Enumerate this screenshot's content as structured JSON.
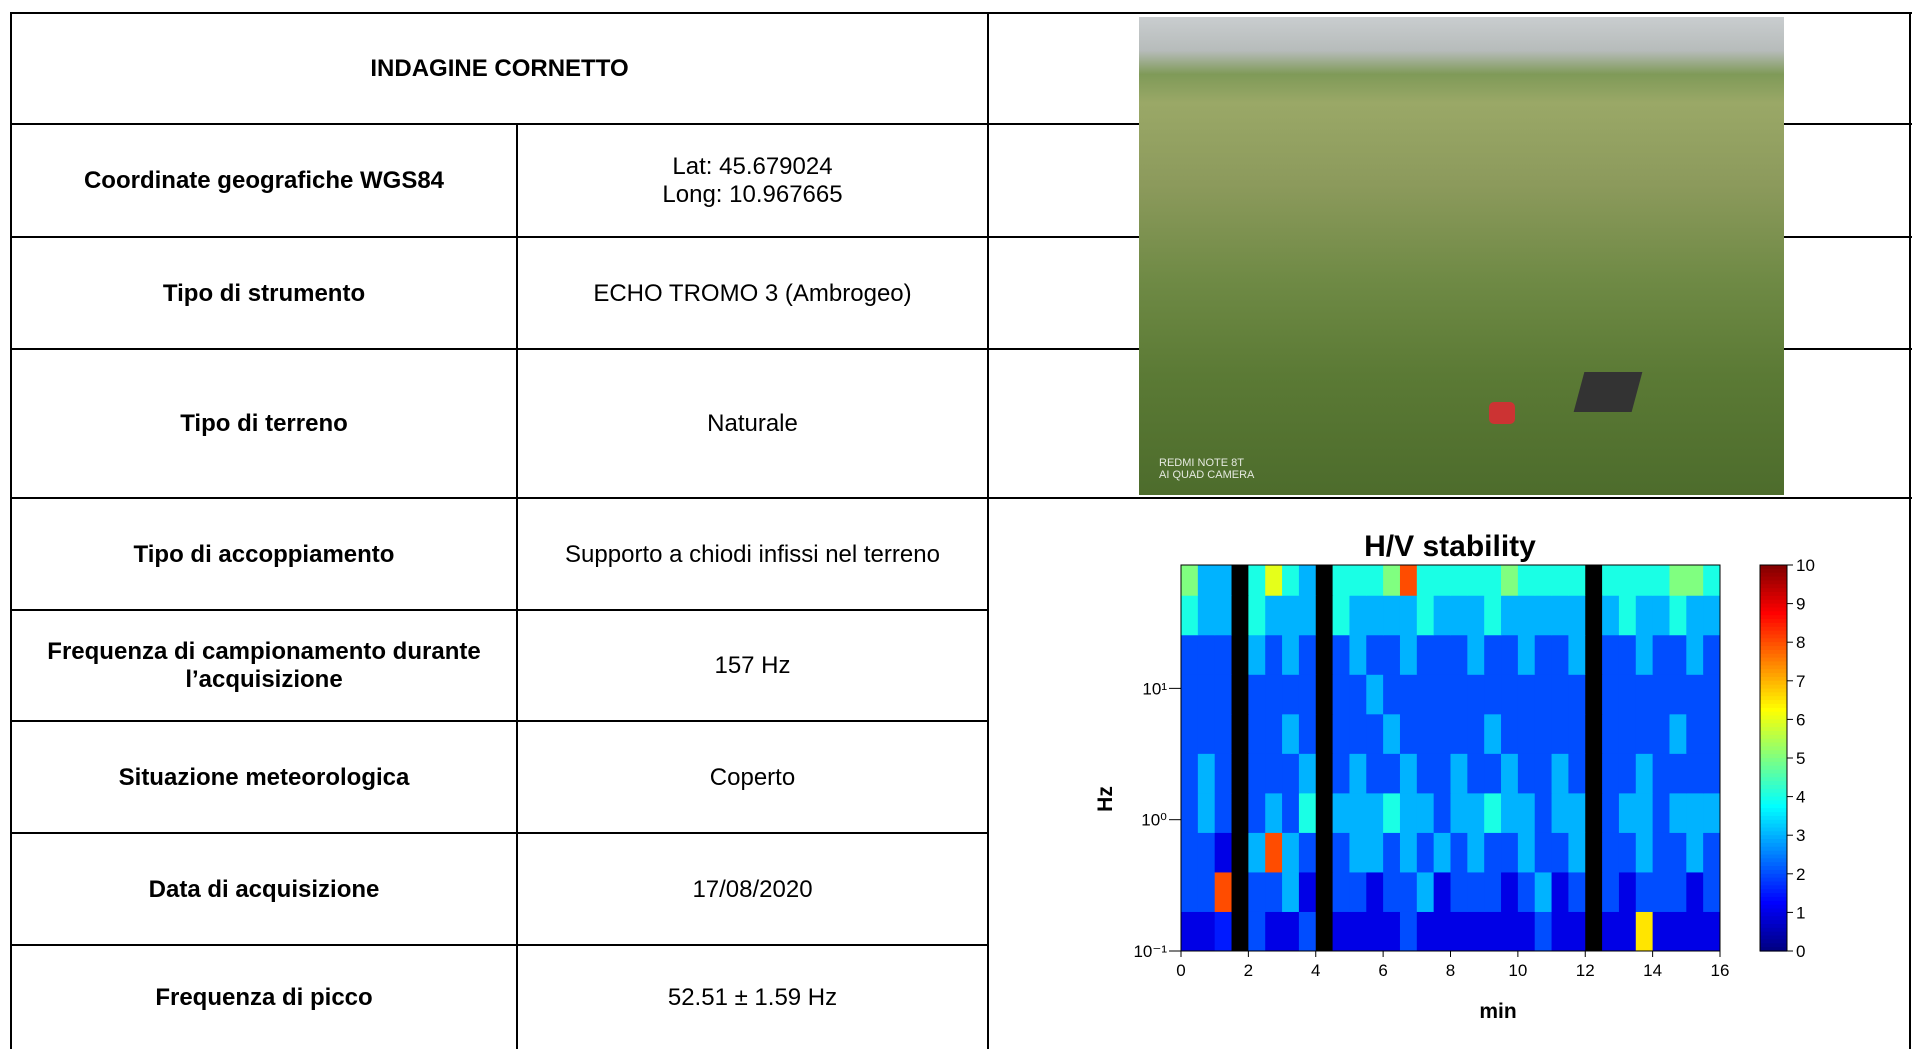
{
  "table": {
    "title": "INDAGINE CORNETTO",
    "rows": [
      {
        "label": "Coordinate geografiche WGS84",
        "value": [
          "Lat: 45.679024",
          "Long: 10.967665"
        ]
      },
      {
        "label": "Tipo di strumento",
        "value": [
          "ECHO TROMO 3 (Ambrogeo)"
        ]
      },
      {
        "label": "Tipo di terreno",
        "value": [
          "Naturale"
        ]
      },
      {
        "label": "Tipo di accoppiamento",
        "value": [
          "Supporto a chiodi infissi nel terreno"
        ]
      },
      {
        "label": "Frequenza di campionamento durante l’acquisizione",
        "value": [
          "157 Hz"
        ]
      },
      {
        "label": "Situazione meteorologica",
        "value": [
          "Coperto"
        ]
      },
      {
        "label": "Data di acquisizione",
        "value": [
          "17/08/2020"
        ]
      },
      {
        "label": "Frequenza di picco",
        "value": [
          "52.51 ± 1.59 Hz"
        ]
      }
    ],
    "photo_caption": [
      "REDMI NOTE 8T",
      "AI QUAD CAMERA"
    ]
  },
  "chart_data": {
    "type": "heatmap",
    "title": "H/V stability",
    "x_label": "min",
    "y_label": "Hz",
    "x_edges": [
      0,
      0.5,
      1,
      1.5,
      2,
      2.5,
      3,
      3.5,
      4,
      4.5,
      5,
      5.5,
      6,
      6.5,
      7,
      7.5,
      8,
      8.5,
      9,
      9.5,
      10,
      10.5,
      11,
      11.5,
      12,
      12.5,
      13,
      13.5,
      14,
      14.5,
      15,
      15.5,
      16
    ],
    "y_edges": [
      0.1,
      0.2,
      0.4,
      0.8,
      1.6,
      3.2,
      6.4,
      12.8,
      25.6,
      51.2,
      87
    ],
    "log_y": true,
    "z": [
      [
        1,
        1,
        1.5,
        null,
        2,
        1,
        1,
        2,
        null,
        1,
        1,
        1,
        1,
        2,
        1,
        1,
        1,
        1,
        1,
        1,
        1,
        2,
        1,
        1,
        null,
        1,
        1,
        6.5,
        1,
        1,
        1,
        1
      ],
      [
        2,
        2,
        8,
        null,
        2,
        2,
        3,
        1,
        null,
        2,
        2,
        1,
        2,
        2,
        3,
        1,
        2,
        2,
        2,
        1,
        2,
        3,
        1,
        2,
        null,
        2,
        1,
        2,
        2,
        2,
        1,
        2
      ],
      [
        2,
        2,
        1,
        null,
        3,
        8,
        3,
        2,
        null,
        2,
        3,
        3,
        2,
        3,
        2,
        3,
        2,
        3,
        2,
        2,
        3,
        2,
        2,
        3,
        null,
        2,
        2,
        3,
        2,
        2,
        3,
        2
      ],
      [
        2,
        3,
        2,
        null,
        2,
        3,
        2,
        4,
        null,
        3,
        3,
        3,
        4,
        3,
        3,
        2,
        3,
        3,
        4,
        3,
        3,
        2,
        3,
        3,
        null,
        2,
        3,
        3,
        2,
        3,
        3,
        3
      ],
      [
        2,
        3,
        2,
        null,
        2,
        2,
        2,
        3,
        null,
        2,
        3,
        2,
        2,
        3,
        2,
        2,
        3,
        2,
        2,
        3,
        2,
        2,
        3,
        2,
        null,
        2,
        2,
        3,
        2,
        2,
        2,
        2
      ],
      [
        2,
        2,
        2,
        null,
        2,
        2,
        3,
        2,
        null,
        2,
        2,
        2,
        3,
        2,
        2,
        2,
        2,
        2,
        3,
        2,
        2,
        2,
        2,
        2,
        null,
        2,
        2,
        2,
        2,
        3,
        2,
        2
      ],
      [
        2,
        2,
        2,
        null,
        2,
        2,
        2,
        2,
        null,
        2,
        2,
        3,
        2,
        2,
        2,
        2,
        2,
        2,
        2,
        2,
        2,
        2,
        2,
        2,
        null,
        2,
        2,
        2,
        2,
        2,
        2,
        2
      ],
      [
        2,
        2,
        2,
        null,
        3,
        2,
        3,
        2,
        null,
        2,
        3,
        2,
        2,
        3,
        2,
        2,
        2,
        3,
        2,
        2,
        3,
        2,
        2,
        3,
        null,
        2,
        2,
        3,
        2,
        2,
        3,
        2
      ],
      [
        4,
        3,
        3,
        null,
        4,
        3,
        3,
        3,
        null,
        4,
        3,
        3,
        3,
        3,
        4,
        3,
        3,
        3,
        4,
        3,
        3,
        3,
        3,
        3,
        null,
        3,
        4,
        3,
        3,
        4,
        3,
        3
      ],
      [
        5,
        3,
        3,
        null,
        4,
        6,
        4,
        3,
        null,
        4,
        4,
        4,
        5,
        8,
        4,
        4,
        4,
        4,
        4,
        5,
        4,
        4,
        4,
        4,
        null,
        4,
        4,
        4,
        4,
        5,
        5,
        4
      ]
    ],
    "xlim": [
      0,
      16
    ],
    "xticks": [
      0,
      2,
      4,
      6,
      8,
      10,
      12,
      14,
      16
    ],
    "ylim": [
      0.1,
      87
    ],
    "yticks": [
      {
        "value": 0.1,
        "label": "10⁻¹"
      },
      {
        "value": 1,
        "label": "10⁰"
      },
      {
        "value": 10,
        "label": "10¹"
      }
    ],
    "zlim": [
      0,
      10
    ],
    "zticks": [
      0,
      1,
      2,
      3,
      4,
      5,
      6,
      7,
      8,
      9,
      10
    ],
    "colormap": "jet"
  }
}
